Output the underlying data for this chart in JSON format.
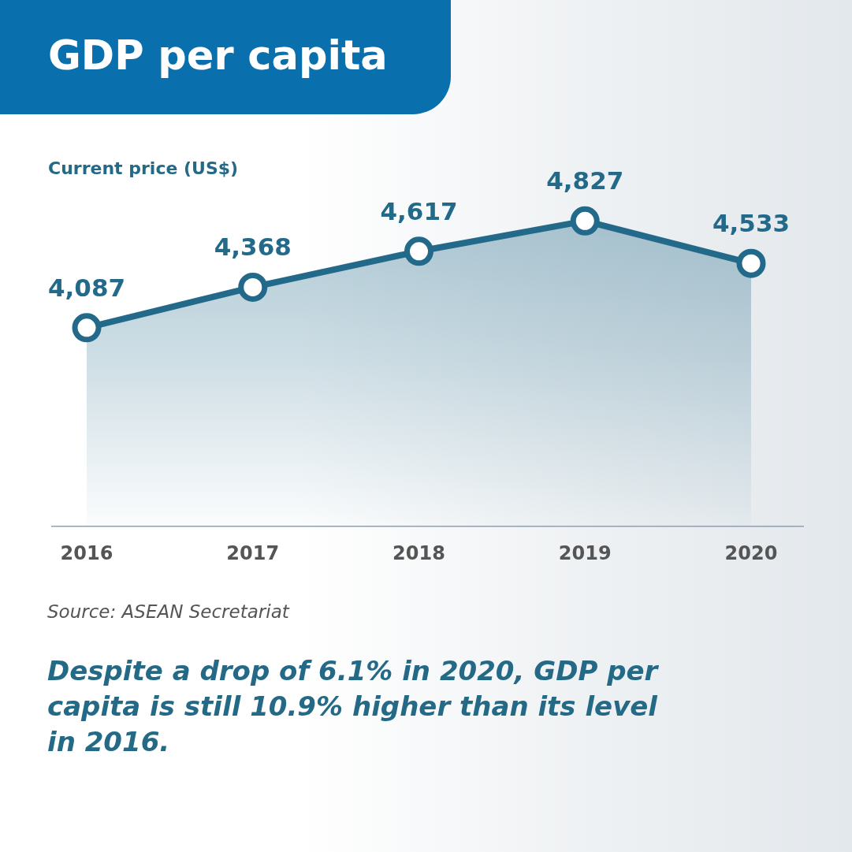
{
  "chart_data": {
    "type": "area",
    "title": "GDP per capita",
    "ylabel": "Current price (US$)",
    "categories": [
      "2016",
      "2017",
      "2018",
      "2019",
      "2020"
    ],
    "values": [
      4087,
      4368,
      4617,
      4827,
      4533
    ],
    "color": "#236a8a",
    "value_labels": [
      "4,087",
      "4,368",
      "4,617",
      "4,827",
      "4,533"
    ],
    "marker": "circle",
    "annotations": [
      "Source: ASEAN Secretariat",
      "Despite a drop of 6.1% in 2020, GDP per capita is still 10.9% higher than its level in 2016."
    ]
  }
}
